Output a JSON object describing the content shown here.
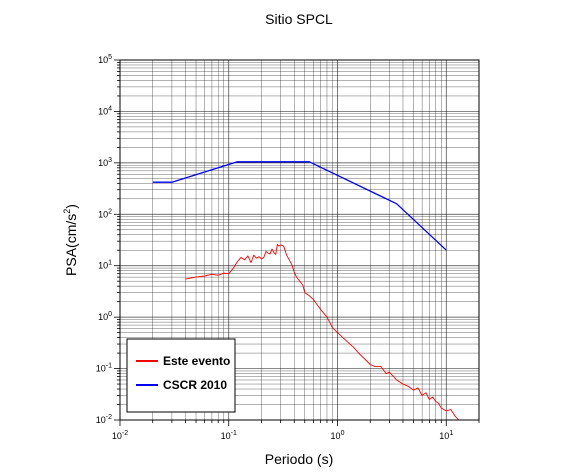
{
  "chart_data": {
    "type": "line",
    "title": "Sitio SPCL",
    "xlabel": "Periodo (s)",
    "ylabel_base": "PSA(cm/s",
    "ylabel_sup": "2",
    "ylabel_end": ")",
    "x_scale": "log",
    "y_scale": "log",
    "xlim": [
      0.01,
      20
    ],
    "ylim": [
      0.01,
      100000
    ],
    "grid": true,
    "x_ticks": [
      {
        "value": 0.01,
        "base": "10",
        "exp": "-2"
      },
      {
        "value": 0.1,
        "base": "10",
        "exp": "-1"
      },
      {
        "value": 1,
        "base": "10",
        "exp": "0"
      },
      {
        "value": 10,
        "base": "10",
        "exp": "1"
      }
    ],
    "y_ticks": [
      {
        "value": 0.01,
        "base": "10",
        "exp": "-2"
      },
      {
        "value": 0.1,
        "base": "10",
        "exp": "-1"
      },
      {
        "value": 1,
        "base": "10",
        "exp": "0"
      },
      {
        "value": 10,
        "base": "10",
        "exp": "1"
      },
      {
        "value": 100,
        "base": "10",
        "exp": "2"
      },
      {
        "value": 1000,
        "base": "10",
        "exp": "3"
      },
      {
        "value": 10000,
        "base": "10",
        "exp": "4"
      },
      {
        "value": 100000,
        "base": "10",
        "exp": "5"
      }
    ],
    "legend_position": "bottom-left",
    "series": [
      {
        "name": "Este evento",
        "color": "#ff0000",
        "x": [
          0.04,
          0.05,
          0.06,
          0.07,
          0.08,
          0.09,
          0.1,
          0.11,
          0.12,
          0.13,
          0.14,
          0.15,
          0.16,
          0.17,
          0.18,
          0.19,
          0.2,
          0.21,
          0.22,
          0.23,
          0.24,
          0.25,
          0.26,
          0.27,
          0.28,
          0.29,
          0.3,
          0.32,
          0.34,
          0.36,
          0.38,
          0.4,
          0.42,
          0.45,
          0.48,
          0.5,
          0.55,
          0.6,
          0.7,
          0.8,
          0.9,
          1.0,
          1.2,
          1.4,
          1.6,
          1.8,
          2.0,
          2.2,
          2.5,
          2.8,
          3.0,
          3.5,
          4.0,
          4.5,
          5.0,
          5.5,
          6.0,
          6.5,
          7.0,
          7.5,
          8.0,
          8.5,
          9.0,
          9.5,
          10.0,
          11.0,
          12.0,
          13.0
        ],
        "y": [
          5.5,
          6.0,
          6.3,
          6.8,
          6.5,
          7.2,
          7.0,
          9.0,
          12.0,
          14.5,
          13.0,
          15.5,
          11.5,
          16.0,
          14.0,
          15.0,
          13.5,
          14.5,
          19.0,
          17.5,
          17.0,
          21.0,
          18.0,
          16.5,
          26.0,
          24.0,
          25.5,
          24.0,
          16.0,
          13.0,
          10.5,
          7.5,
          6.0,
          5.0,
          4.2,
          3.0,
          2.6,
          2.2,
          1.4,
          1.0,
          0.62,
          0.5,
          0.35,
          0.26,
          0.19,
          0.15,
          0.12,
          0.11,
          0.11,
          0.08,
          0.085,
          0.06,
          0.05,
          0.045,
          0.038,
          0.042,
          0.03,
          0.034,
          0.025,
          0.028,
          0.023,
          0.021,
          0.017,
          0.016,
          0.015,
          0.016,
          0.012,
          0.01
        ]
      },
      {
        "name": "CSCR 2010",
        "color": "#0000ff",
        "x": [
          0.02,
          0.03,
          0.12,
          0.55,
          3.5,
          10.0
        ],
        "y": [
          420,
          420,
          1050,
          1050,
          160,
          20
        ]
      }
    ]
  }
}
